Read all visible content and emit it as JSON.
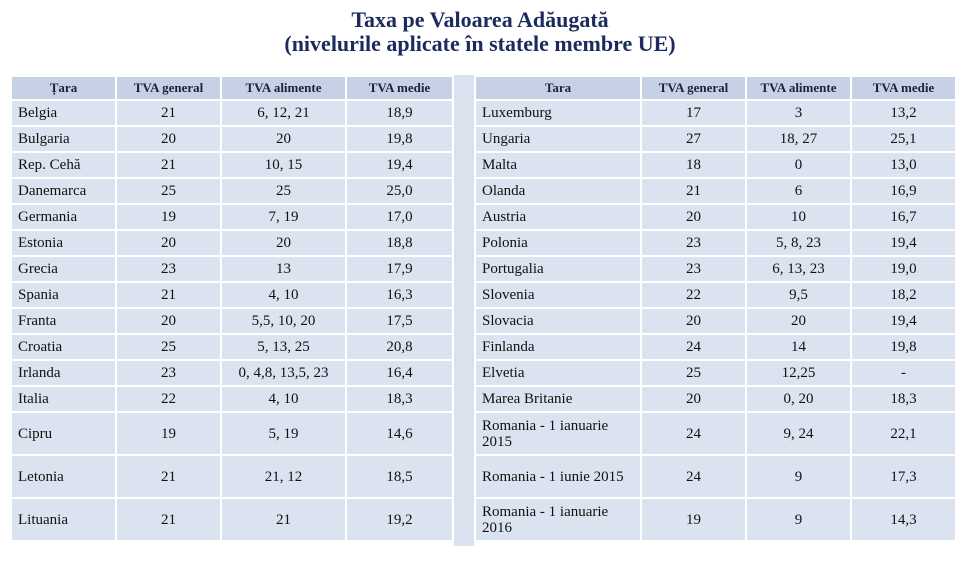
{
  "title": {
    "line1": "Taxa pe Valoarea Adăugată",
    "line2": "(nivelurile aplicate în statele membre UE)"
  },
  "headers": [
    "Țara",
    "TVA general",
    "TVA alimente",
    "TVA medie"
  ],
  "left_rows": [
    [
      "Belgia",
      "21",
      "6, 12, 21",
      "18,9"
    ],
    [
      "Bulgaria",
      "20",
      "20",
      "19,8"
    ],
    [
      "Rep. Cehă",
      "21",
      "10, 15",
      "19,4"
    ],
    [
      "Danemarca",
      "25",
      "25",
      "25,0"
    ],
    [
      "Germania",
      "19",
      "7, 19",
      "17,0"
    ],
    [
      "Estonia",
      "20",
      "20",
      "18,8"
    ],
    [
      "Grecia",
      "23",
      "13",
      "17,9"
    ],
    [
      "Spania",
      "21",
      "4, 10",
      "16,3"
    ],
    [
      "Franta",
      "20",
      "5,5, 10, 20",
      "17,5"
    ],
    [
      "Croatia",
      "25",
      "5, 13, 25",
      "20,8"
    ],
    [
      "Irlanda",
      "23",
      "0, 4,8, 13,5, 23",
      "16,4"
    ],
    [
      "Italia",
      "22",
      "4, 10",
      "18,3"
    ],
    [
      "Cipru",
      "19",
      "5, 19",
      "14,6"
    ],
    [
      "Letonia",
      "21",
      "21, 12",
      "18,5"
    ],
    [
      "Lituania",
      "21",
      "21",
      "19,2"
    ]
  ],
  "right_headers": [
    "Tara",
    "TVA general",
    "TVA alimente",
    "TVA medie"
  ],
  "right_rows": [
    [
      "Luxemburg",
      "17",
      "3",
      "13,2"
    ],
    [
      "Ungaria",
      "27",
      "18, 27",
      "25,1"
    ],
    [
      "Malta",
      "18",
      "0",
      "13,0"
    ],
    [
      "Olanda",
      "21",
      "6",
      "16,9"
    ],
    [
      "Austria",
      "20",
      "10",
      "16,7"
    ],
    [
      "Polonia",
      "23",
      "5, 8, 23",
      "19,4"
    ],
    [
      "Portugalia",
      "23",
      "6, 13, 23",
      "19,0"
    ],
    [
      "Slovenia",
      "22",
      "9,5",
      "18,2"
    ],
    [
      "Slovacia",
      "20",
      "20",
      "19,4"
    ],
    [
      "Finlanda",
      "24",
      "14",
      "19,8"
    ],
    [
      "Elvetia",
      "25",
      "12,25",
      "-"
    ],
    [
      "Marea Britanie",
      "20",
      "0, 20",
      "18,3"
    ],
    [
      "Romania - 1 ianuarie 2015",
      "24",
      "9, 24",
      "22,1"
    ],
    [
      "Romania - 1 iunie 2015",
      "24",
      "9",
      "17,3"
    ],
    [
      "Romania - 1 ianuarie 2016",
      "19",
      "9",
      "14,3"
    ]
  ]
}
